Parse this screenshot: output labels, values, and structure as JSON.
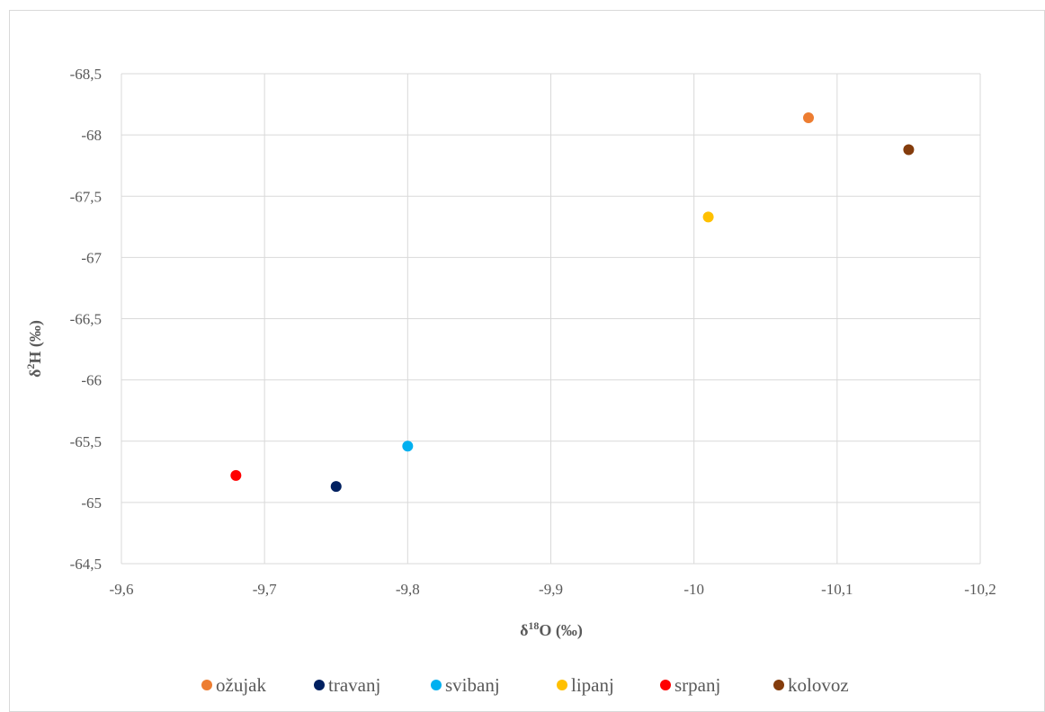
{
  "chart_data": {
    "type": "scatter",
    "xlabel": "δ¹⁸O (‰)",
    "ylabel": "δ²H (‰)",
    "xlim": [
      -9.6,
      -10.2
    ],
    "ylim": [
      -64.5,
      -68.5
    ],
    "x_reversed": true,
    "y_reversed": true,
    "x_ticks": [
      "-9,6",
      "-9,7",
      "-9,8",
      "-9,9",
      "-10",
      "-10,1",
      "-10,2"
    ],
    "y_ticks": [
      "-64,5",
      "-65",
      "-65,5",
      "-66",
      "-66,5",
      "-67",
      "-67,5",
      "-68",
      "-68,5"
    ],
    "grid": true,
    "legend_position": "bottom",
    "series": [
      {
        "name": "ožujak",
        "color": "#ED7D31",
        "points": [
          [
            -10.08,
            -68.14
          ]
        ]
      },
      {
        "name": "travanj",
        "color": "#002060",
        "points": [
          [
            -9.75,
            -65.13
          ]
        ]
      },
      {
        "name": "svibanj",
        "color": "#00B0F0",
        "points": [
          [
            -9.8,
            -65.46
          ]
        ]
      },
      {
        "name": "lipanj",
        "color": "#FFC000",
        "points": [
          [
            -10.01,
            -67.33
          ]
        ]
      },
      {
        "name": "srpanj",
        "color": "#FF0000",
        "points": [
          [
            -9.68,
            -65.22
          ]
        ]
      },
      {
        "name": "kolovoz",
        "color": "#843C0C",
        "points": [
          [
            -10.15,
            -67.88
          ]
        ]
      }
    ]
  }
}
